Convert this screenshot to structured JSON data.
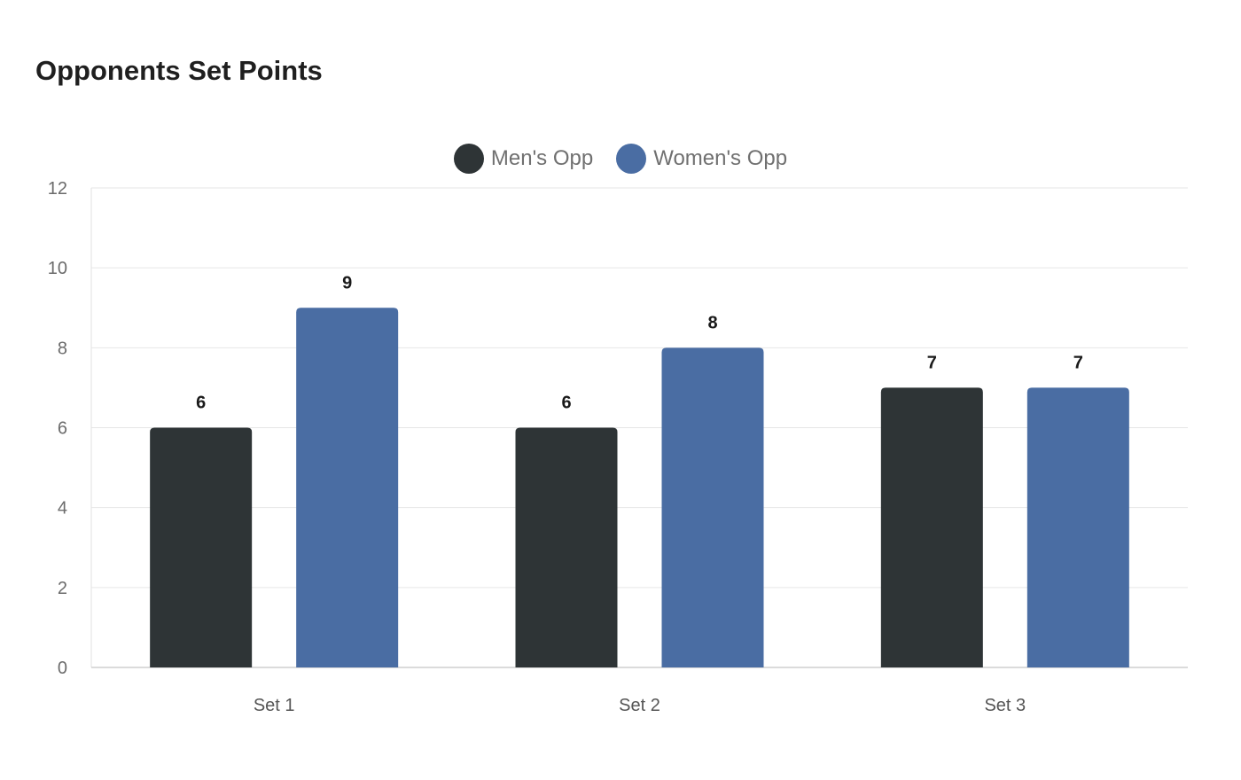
{
  "chart_data": {
    "type": "bar",
    "title": "Opponents Set Points",
    "categories": [
      "Set 1",
      "Set 2",
      "Set 3"
    ],
    "series": [
      {
        "name": "Men's Opp",
        "color": "#2e3436",
        "values": [
          6,
          6,
          7
        ]
      },
      {
        "name": "Women's Opp",
        "color": "#4a6da3",
        "values": [
          9,
          8,
          7
        ]
      }
    ],
    "ylim": [
      0,
      12
    ],
    "yticks": [
      0,
      2,
      4,
      6,
      8,
      10,
      12
    ],
    "grid": true,
    "legend_position": "top-center",
    "data_labels": true
  }
}
